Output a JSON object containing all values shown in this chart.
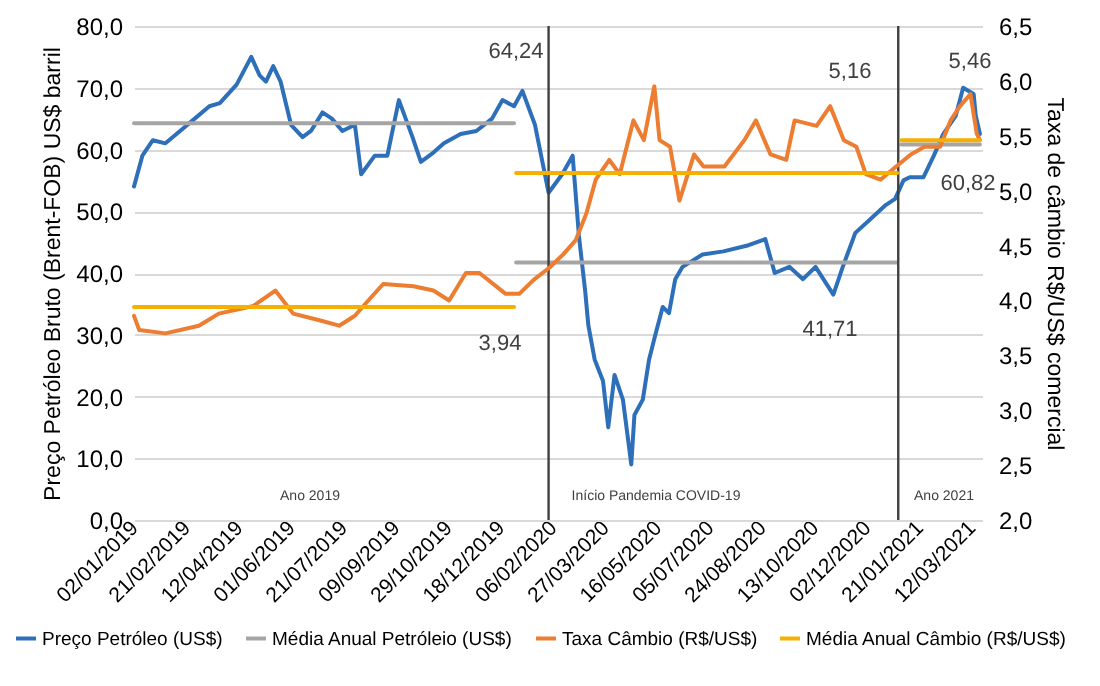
{
  "chart_data": {
    "type": "line",
    "ylabel": "Preço Petróleo Bruto (Brent-FOB) US$ barril",
    "y2label": "Taxa de câmbio R$/US$ comercial",
    "xlim": [
      "2019-01-02",
      "2021-03-22"
    ],
    "xticks": [
      {
        "value": "2019-01-02",
        "label": "02/01/2019"
      },
      {
        "value": "2019-02-21",
        "label": "21/02/2019"
      },
      {
        "value": "2019-04-12",
        "label": "12/04/2019"
      },
      {
        "value": "2019-06-01",
        "label": "01/06/2019"
      },
      {
        "value": "2019-07-21",
        "label": "21/07/2019"
      },
      {
        "value": "2019-09-09",
        "label": "09/09/2019"
      },
      {
        "value": "2019-10-29",
        "label": "29/10/2019"
      },
      {
        "value": "2019-12-18",
        "label": "18/12/2019"
      },
      {
        "value": "2020-02-06",
        "label": "06/02/2020"
      },
      {
        "value": "2020-03-27",
        "label": "27/03/2020"
      },
      {
        "value": "2020-05-16",
        "label": "16/05/2020"
      },
      {
        "value": "2020-07-05",
        "label": "05/07/2020"
      },
      {
        "value": "2020-08-24",
        "label": "24/08/2020"
      },
      {
        "value": "2020-10-13",
        "label": "13/10/2020"
      },
      {
        "value": "2020-12-02",
        "label": "02/12/2020"
      },
      {
        "value": "2021-01-21",
        "label": "21/01/2021"
      },
      {
        "value": "2021-03-12",
        "label": "12/03/2021"
      }
    ],
    "ylim": [
      0,
      80
    ],
    "yticks": [
      {
        "value": 0,
        "label": "0,0"
      },
      {
        "value": 10,
        "label": "10,0"
      },
      {
        "value": 20,
        "label": "20,0"
      },
      {
        "value": 30,
        "label": "30,0"
      },
      {
        "value": 40,
        "label": "40,0"
      },
      {
        "value": 50,
        "label": "50,0"
      },
      {
        "value": 60,
        "label": "60,0"
      },
      {
        "value": 70,
        "label": "70,0"
      },
      {
        "value": 80,
        "label": "80,0"
      }
    ],
    "y2lim": [
      2,
      6.5
    ],
    "y2ticks": [
      {
        "value": 2,
        "label": "2,0"
      },
      {
        "value": 2.5,
        "label": "2,5"
      },
      {
        "value": 3,
        "label": "3,0"
      },
      {
        "value": 3.5,
        "label": "3,5"
      },
      {
        "value": 4,
        "label": "4,0"
      },
      {
        "value": 4.5,
        "label": "4,5"
      },
      {
        "value": 5,
        "label": "5,0"
      },
      {
        "value": 5.5,
        "label": "5,5"
      },
      {
        "value": 6,
        "label": "6,0"
      },
      {
        "value": 6.5,
        "label": "6,5"
      }
    ],
    "grid": "y",
    "legend": "bottom",
    "series": [
      {
        "name": "Preço Petróleo (US$)",
        "color": "#2e6fba",
        "x": [
          "2019-01-02",
          "2019-01-10",
          "2019-01-20",
          "2019-02-01",
          "2019-02-15",
          "2019-03-01",
          "2019-03-15",
          "2019-03-25",
          "2019-04-10",
          "2019-04-24",
          "2019-05-02",
          "2019-05-08",
          "2019-05-15",
          "2019-05-22",
          "2019-06-01",
          "2019-06-12",
          "2019-06-20",
          "2019-07-01",
          "2019-07-10",
          "2019-07-20",
          "2019-08-01",
          "2019-08-07",
          "2019-08-20",
          "2019-09-01",
          "2019-09-12",
          "2019-09-25",
          "2019-10-03",
          "2019-10-15",
          "2019-10-25",
          "2019-11-10",
          "2019-11-25",
          "2019-12-10",
          "2019-12-20",
          "2019-12-31",
          "2020-01-08",
          "2020-01-20",
          "2020-02-02",
          "2020-02-15",
          "2020-02-25",
          "2020-03-02",
          "2020-03-08",
          "2020-03-11",
          "2020-03-17",
          "2020-03-25",
          "2020-03-30",
          "2020-04-05",
          "2020-04-13",
          "2020-04-21",
          "2020-04-24",
          "2020-05-02",
          "2020-05-08",
          "2020-05-14",
          "2020-05-21",
          "2020-05-27",
          "2020-06-02",
          "2020-06-09",
          "2020-06-28",
          "2020-07-18",
          "2020-08-11",
          "2020-08-27",
          "2020-09-05",
          "2020-09-19",
          "2020-10-02",
          "2020-10-14",
          "2020-10-31",
          "2020-11-09",
          "2020-11-21",
          "2020-12-04",
          "2020-12-20",
          "2020-12-29",
          "2021-01-06",
          "2021-01-12",
          "2021-01-25",
          "2021-02-04",
          "2021-02-13",
          "2021-02-25",
          "2021-03-04",
          "2021-03-14",
          "2021-03-16",
          "2021-03-20"
        ],
        "values": [
          54,
          59,
          61.5,
          61,
          63,
          65,
          67,
          67.5,
          70.5,
          75,
          72,
          71,
          73.5,
          71,
          64,
          62,
          63,
          66,
          65,
          63,
          64,
          56,
          59,
          59,
          68,
          62,
          58,
          59.5,
          61,
          62.5,
          63,
          65,
          68,
          67,
          69.5,
          64,
          53,
          56,
          59,
          46,
          37,
          31.5,
          26,
          22.5,
          15,
          23.5,
          19.5,
          9,
          17,
          19.5,
          26,
          30,
          34.5,
          33.5,
          39,
          41,
          43,
          43.5,
          44.5,
          45.5,
          40,
          41,
          39,
          41,
          36.5,
          41,
          46.5,
          48.5,
          51,
          52,
          55,
          55.5,
          55.5,
          59,
          62.5,
          65.5,
          70,
          69,
          65.5,
          62.5
        ]
      },
      {
        "name": "Média Anual Petróleio (US$)",
        "color": "#a5a5a5",
        "x": [
          "2019-01-02",
          "2019-12-31",
          "2020-01-01",
          "2020-01-02",
          "2020-12-31",
          "2021-01-01",
          "2021-01-04",
          "2021-03-20"
        ],
        "values": [
          64.24,
          64.24,
          null,
          41.71,
          41.71,
          null,
          60.82,
          60.82
        ]
      },
      {
        "name": "Taxa Câmbio (R$/US$)",
        "color": "#ed7d31",
        "axis": "y2",
        "x": [
          "2019-01-02",
          "2019-01-07",
          "2019-02-01",
          "2019-03-05",
          "2019-03-24",
          "2019-04-26",
          "2019-05-17",
          "2019-06-03",
          "2019-06-28",
          "2019-07-17",
          "2019-08-01",
          "2019-08-11",
          "2019-08-28",
          "2019-09-26",
          "2019-10-15",
          "2019-10-30",
          "2019-11-15",
          "2019-11-28",
          "2019-12-23",
          "2020-01-05",
          "2020-01-19",
          "2020-02-03",
          "2020-02-16",
          "2020-02-28",
          "2020-03-09",
          "2020-03-18",
          "2020-03-31",
          "2020-04-10",
          "2020-04-23",
          "2020-05-03",
          "2020-05-13",
          "2020-05-18",
          "2020-05-28",
          "2020-06-06",
          "2020-06-20",
          "2020-06-29",
          "2020-07-19",
          "2020-08-07",
          "2020-08-18",
          "2020-09-01",
          "2020-09-16",
          "2020-09-24",
          "2020-10-15",
          "2020-10-28",
          "2020-11-10",
          "2020-11-22",
          "2020-12-01",
          "2020-12-15",
          "2020-12-30",
          "2021-01-13",
          "2021-01-26",
          "2021-02-10",
          "2021-02-20",
          "2021-03-01",
          "2021-03-11",
          "2021-03-17",
          "2021-03-20"
        ],
        "values": [
          3.86,
          3.73,
          3.7,
          3.77,
          3.88,
          3.95,
          4.09,
          3.88,
          3.82,
          3.77,
          3.86,
          3.97,
          4.15,
          4.13,
          4.09,
          4.0,
          4.25,
          4.25,
          4.06,
          4.06,
          4.19,
          4.3,
          4.42,
          4.55,
          4.79,
          5.1,
          5.28,
          5.15,
          5.64,
          5.46,
          5.95,
          5.46,
          5.4,
          4.91,
          5.33,
          5.22,
          5.22,
          5.46,
          5.64,
          5.33,
          5.28,
          5.64,
          5.59,
          5.77,
          5.46,
          5.4,
          5.15,
          5.1,
          5.22,
          5.33,
          5.4,
          5.4,
          5.64,
          5.77,
          5.88,
          5.52,
          5.46
        ]
      },
      {
        "name": "Média Anual Câmbio (R$/US$)",
        "color": "#f5b000",
        "axis": "y2",
        "x": [
          "2019-01-02",
          "2019-12-31",
          "2020-01-01",
          "2020-01-02",
          "2020-12-31",
          "2021-01-01",
          "2021-01-04",
          "2021-03-20"
        ],
        "values": [
          3.94,
          3.94,
          null,
          5.16,
          5.16,
          null,
          5.46,
          5.46
        ]
      }
    ],
    "ref_lines": [
      {
        "axis": "x",
        "value": "2020-02-02",
        "color": "#404040"
      },
      {
        "axis": "x",
        "value": "2021-01-01",
        "color": "#404040"
      }
    ],
    "annotations": [
      "64,24",
      "3,94",
      "5,16",
      "41,71",
      "5,46",
      "60,82",
      "Ano 2019",
      "Início Pandemia COVID-19",
      "Ano 2021"
    ]
  }
}
